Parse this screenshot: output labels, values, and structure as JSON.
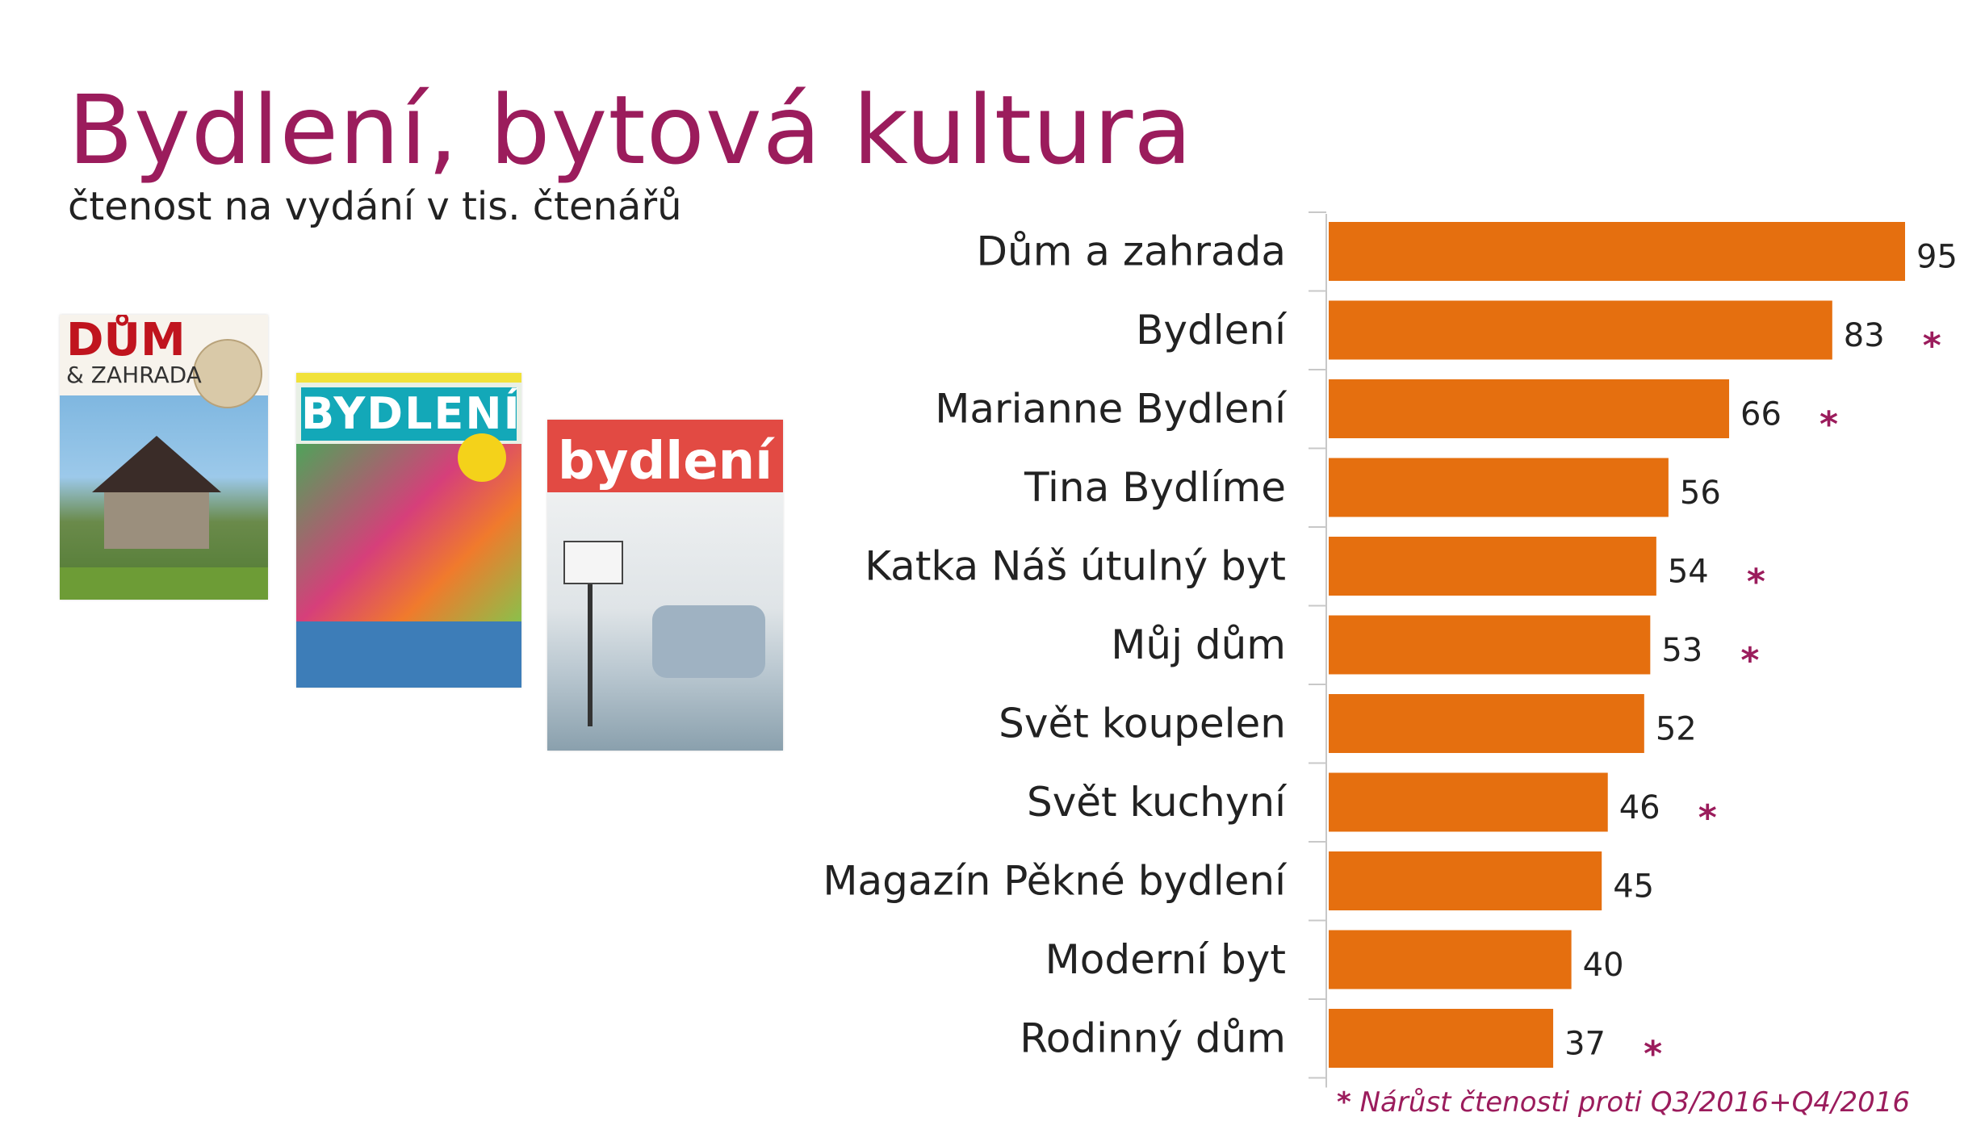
{
  "title": "Bydlení, bytová kultura",
  "subtitle": "čtenost na vydání v tis. čtenářů",
  "covers": {
    "cover1_masthead": "DŮM",
    "cover1_sub": "& ZAHRADA",
    "cover2_masthead": "BYDLENÍ",
    "cover3_masthead": "bydlení"
  },
  "colors": {
    "bar": "#e56f0f",
    "accent": "#9b1c5c",
    "text": "#222222",
    "axis": "#c8c8c8"
  },
  "chart_data": {
    "type": "bar",
    "orientation": "horizontal",
    "categories": [
      "Dům a zahrada",
      "Bydlení",
      "Marianne Bydlení",
      "Tina Bydlíme",
      "Katka Náš útulný byt",
      "Můj dům",
      "Svět koupelen",
      "Svět kuchyní",
      "Magazín Pěkné bydlení",
      "Moderní byt",
      "Rodinný dům"
    ],
    "values": [
      95,
      83,
      66,
      56,
      54,
      53,
      52,
      46,
      45,
      40,
      37
    ],
    "value_labels": [
      "95",
      "83",
      "66",
      "56",
      "54",
      "53",
      "52",
      "46",
      "45",
      "40",
      "37"
    ],
    "growth_marker": [
      false,
      true,
      true,
      false,
      true,
      true,
      false,
      true,
      false,
      false,
      true
    ],
    "marker_symbol": "*",
    "xlim": [
      0,
      95
    ],
    "grid": false,
    "legend": "none"
  },
  "footnote": {
    "star": "*",
    "text": " Nárůst čtenosti proti Q3/2016+Q4/2016"
  }
}
